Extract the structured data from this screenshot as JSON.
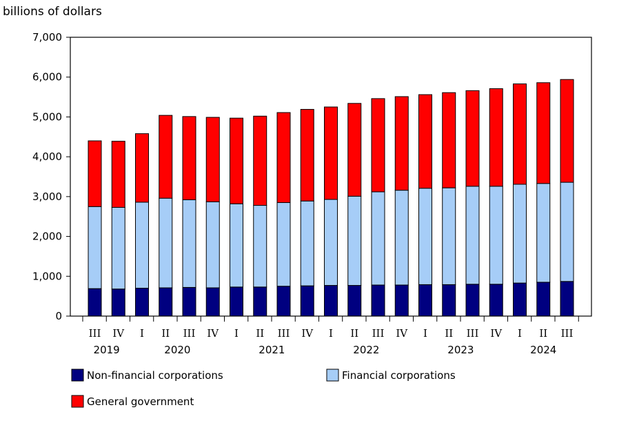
{
  "chart_data": {
    "type": "bar",
    "stacked": true,
    "ylabel": "billions of dollars",
    "ylim": [
      0,
      7000
    ],
    "yticks": [
      0,
      1000,
      2000,
      3000,
      4000,
      5000,
      6000,
      7000
    ],
    "ytick_labels": [
      "0",
      "1,000",
      "2,000",
      "3,000",
      "4,000",
      "5,000",
      "6,000",
      "7,000"
    ],
    "grid": false,
    "categories": [
      "III",
      "IV",
      "I",
      "II",
      "III",
      "IV",
      "I",
      "II",
      "III",
      "IV",
      "I",
      "II",
      "III",
      "IV",
      "I",
      "II",
      "III",
      "IV",
      "I",
      "II",
      "III"
    ],
    "years": [
      {
        "label": "2019",
        "start": 0,
        "end": 1
      },
      {
        "label": "2020",
        "start": 2,
        "end": 5
      },
      {
        "label": "2021",
        "start": 6,
        "end": 9
      },
      {
        "label": "2022",
        "start": 10,
        "end": 13
      },
      {
        "label": "2023",
        "start": 14,
        "end": 17
      },
      {
        "label": "2024",
        "start": 18,
        "end": 20
      }
    ],
    "series": [
      {
        "name": "Non-financial corporations",
        "color": "#000080",
        "values": [
          690,
          680,
          700,
          710,
          720,
          710,
          730,
          730,
          750,
          760,
          770,
          770,
          780,
          780,
          790,
          790,
          800,
          800,
          830,
          850,
          870
        ]
      },
      {
        "name": "Financial corporations",
        "color": "#a6cdf7",
        "values": [
          2060,
          2050,
          2160,
          2250,
          2200,
          2160,
          2090,
          2050,
          2100,
          2130,
          2160,
          2240,
          2340,
          2380,
          2420,
          2430,
          2460,
          2460,
          2480,
          2480,
          2490
        ]
      },
      {
        "name": "General government",
        "color": "#ff0000",
        "values": [
          1650,
          1660,
          1720,
          2080,
          2090,
          2120,
          2150,
          2240,
          2260,
          2300,
          2320,
          2330,
          2340,
          2350,
          2350,
          2390,
          2400,
          2450,
          2520,
          2530,
          2580
        ]
      }
    ],
    "legend_position": "bottom"
  }
}
